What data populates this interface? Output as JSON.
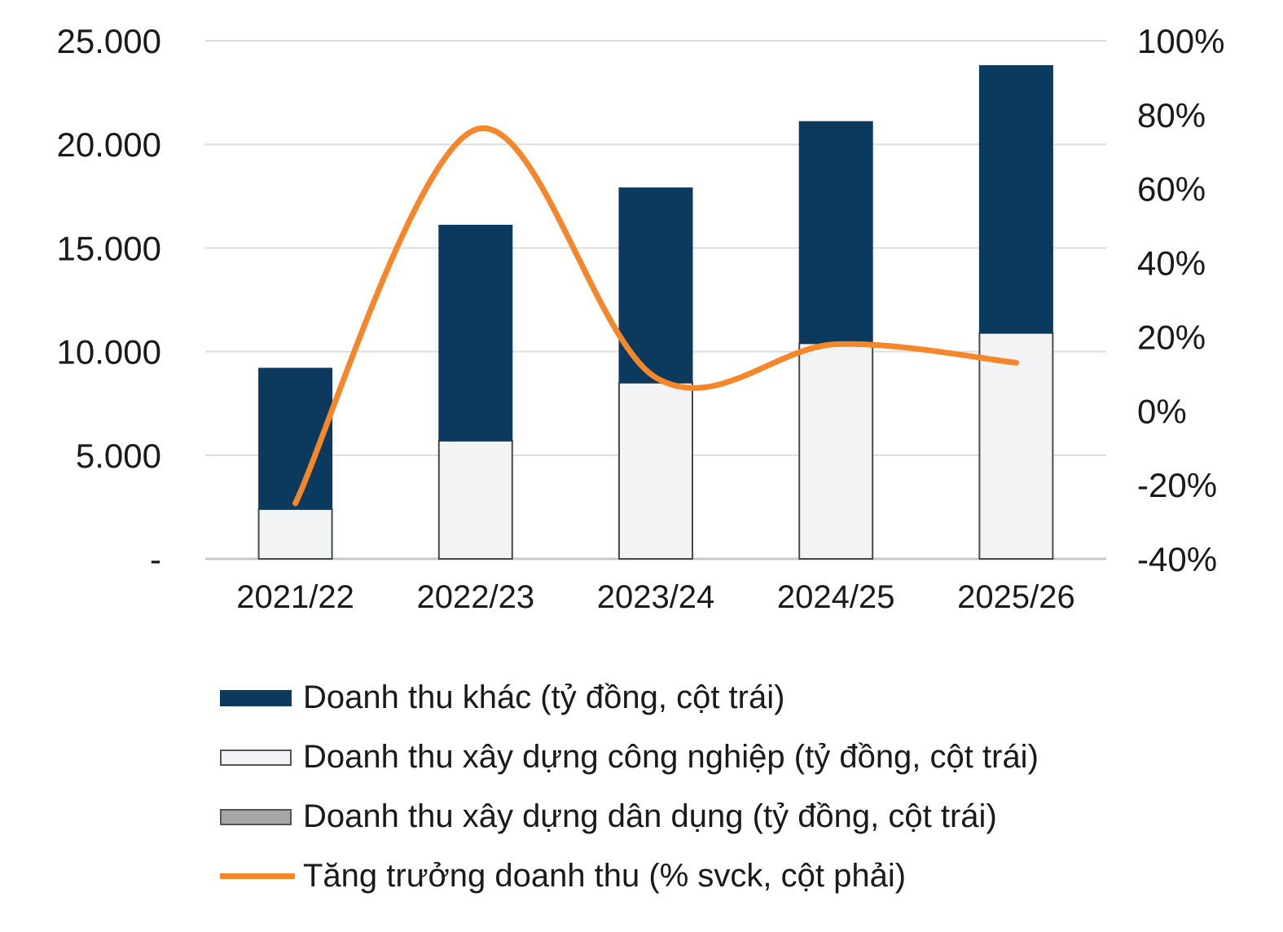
{
  "chart_data": {
    "type": "bar",
    "stacked": true,
    "categories": [
      "2021/22",
      "2022/23",
      "2023/24",
      "2024/25",
      "2025/26"
    ],
    "series": [
      {
        "name": "Doanh thu xây dựng dân dụng (tỷ đồng, cột trái)",
        "type": "bar",
        "axis": "left",
        "color": "#a6a6a6",
        "values": [
          0,
          0,
          0,
          0,
          0
        ]
      },
      {
        "name": "Doanh thu xây dựng công nghiệp (tỷ đồng, cột trái)",
        "type": "bar",
        "axis": "left",
        "color": "#f2f3f5",
        "values": [
          2400,
          5700,
          8500,
          10400,
          10900
        ]
      },
      {
        "name": "Doanh thu khác (tỷ đồng, cột trái)",
        "type": "bar",
        "axis": "left",
        "color": "#0b3a5e",
        "values": [
          6800,
          10400,
          9400,
          10700,
          12900
        ]
      },
      {
        "name": "Tăng trưởng doanh thu (% svck, cột phải)",
        "type": "line",
        "axis": "right",
        "color": "#f5862a",
        "values": [
          -25,
          76,
          9,
          18,
          13
        ]
      }
    ],
    "y_left": {
      "ylim": [
        0,
        25000
      ],
      "ticks": [
        0,
        5000,
        10000,
        15000,
        20000,
        25000
      ],
      "tick_labels": [
        "-",
        "5.000",
        "10.000",
        "15.000",
        "20.000",
        "25.000"
      ]
    },
    "y_right": {
      "ylim": [
        -40,
        100
      ],
      "ticks": [
        -40,
        -20,
        0,
        20,
        40,
        60,
        80,
        100
      ],
      "tick_labels": [
        "-40%",
        "-20%",
        "0%",
        "20%",
        "40%",
        "60%",
        "80%",
        "100%"
      ]
    },
    "grid": true,
    "legend_position": "bottom",
    "title": "",
    "xlabel": "",
    "ylabel": ""
  },
  "legend": [
    {
      "label": "Doanh thu khác (tỷ đồng, cột trái)",
      "color": "#0b3a5e",
      "kind": "bar"
    },
    {
      "label": "Doanh thu xây dựng công nghiệp (tỷ đồng, cột trái)",
      "color": "#f2f3f5",
      "kind": "bar"
    },
    {
      "label": "Doanh thu xây dựng dân dụng (tỷ đồng, cột trái)",
      "color": "#a6a6a6",
      "kind": "bar"
    },
    {
      "label": "Tăng trưởng doanh thu (% svck, cột phải)",
      "color": "#f5862a",
      "kind": "line"
    }
  ]
}
